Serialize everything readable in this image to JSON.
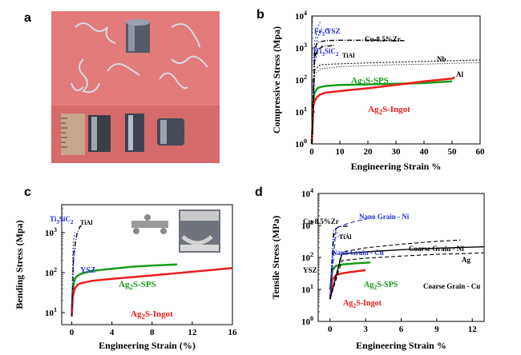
{
  "panels": {
    "a": "a",
    "b": "b",
    "c": "c",
    "d": "d"
  },
  "colors": {
    "sps": "#1a9a1a",
    "ingot": "#ee1c1c",
    "blue": "#1f2ed8",
    "black": "#000000",
    "photo_bg": "#e07878"
  },
  "chart_data": [
    {
      "id": "b",
      "type": "line",
      "xlabel": "Engineering Strain %",
      "ylabel": "Compressive Stress (Mpa)",
      "xlim": [
        0,
        60
      ],
      "ylim": [
        1,
        10000
      ],
      "yscale": "log",
      "x_ticks": [
        "0",
        "10",
        "20",
        "30",
        "40",
        "50",
        "60"
      ],
      "y_ticks": [
        "10^0",
        "10^1",
        "10^2",
        "10^3",
        "10^4"
      ],
      "series": [
        {
          "name": "Ag2S-SPS",
          "color": "#1a9a1a",
          "x": [
            0,
            0.5,
            1,
            2,
            3,
            5,
            10,
            20,
            30,
            40,
            50
          ],
          "y": [
            1,
            20,
            40,
            55,
            60,
            65,
            70,
            73,
            76,
            80,
            90
          ]
        },
        {
          "name": "Ag2S-Ingot",
          "color": "#ee1c1c",
          "x": [
            0,
            0.5,
            1,
            2,
            3,
            5,
            10,
            20,
            30,
            40,
            50,
            51
          ],
          "y": [
            1,
            15,
            22,
            30,
            35,
            40,
            45,
            55,
            70,
            90,
            110,
            120
          ]
        },
        {
          "name": "Fe3C",
          "color": "#1f2ed8",
          "x": [
            0,
            1,
            2,
            3
          ],
          "y": [
            1,
            1500,
            4000,
            6500
          ]
        },
        {
          "name": "YSZ",
          "color": "#1f2ed8",
          "x": [
            0,
            1,
            2,
            3.5
          ],
          "y": [
            1,
            500,
            2000,
            4000
          ]
        },
        {
          "name": "Ti3SiC2",
          "color": "#1f2ed8",
          "x": [
            0,
            1,
            2,
            4
          ],
          "y": [
            1,
            300,
            800,
            1300
          ]
        },
        {
          "name": "Cu-8.5%Zr",
          "color": "#000000",
          "x": [
            0,
            1,
            2,
            5,
            10,
            20,
            33
          ],
          "y": [
            1,
            900,
            1500,
            1700,
            1750,
            1750,
            1700
          ]
        },
        {
          "name": "TiAl",
          "color": "#000000",
          "x": [
            0,
            1,
            2,
            4,
            8
          ],
          "y": [
            1,
            500,
            900,
            1100,
            1200
          ]
        },
        {
          "name": "Nb",
          "color": "#000000",
          "x": [
            0,
            1,
            3,
            10,
            20,
            30,
            40,
            50,
            60
          ],
          "y": [
            1,
            200,
            300,
            320,
            340,
            360,
            380,
            400,
            420
          ]
        },
        {
          "name": "Al",
          "color": "#000000",
          "x": [
            0,
            1,
            3,
            10,
            20,
            30,
            40,
            50,
            60
          ],
          "y": [
            1,
            150,
            220,
            260,
            280,
            300,
            310,
            330,
            350
          ]
        }
      ],
      "annotations": {
        "fe3c": "Fe",
        "fe3c_sub": "3",
        "fe3c_end": "C",
        "ysz": "YSZ",
        "ti": "Ti",
        "ti_sub1": "3",
        "ti_mid": "SiC",
        "ti_sub2": "2",
        "tial": "TiAl",
        "cuzr": "Cu-8.5%Zr",
        "nb": "Nb",
        "al": "Al",
        "sps": "Ag",
        "sps_sub": "2",
        "sps_end": "S-SPS",
        "ingot": "Ag",
        "ingot_sub": "2",
        "ingot_end": "S-Ingot"
      }
    },
    {
      "id": "c",
      "type": "line",
      "xlabel": "Engineering Strain (%)",
      "ylabel": "Bending Stress (Mpa)",
      "xlim": [
        -1,
        16
      ],
      "ylim": [
        5,
        5000
      ],
      "yscale": "log",
      "x_ticks": [
        "0",
        "4",
        "8",
        "12",
        "16"
      ],
      "y_ticks": [
        "10^1",
        "10^2",
        "10^3"
      ],
      "series": [
        {
          "name": "Ag2S-SPS",
          "color": "#1a9a1a",
          "x": [
            0,
            0.1,
            0.3,
            0.6,
            1,
            2,
            4,
            6,
            8,
            10.5
          ],
          "y": [
            10,
            40,
            70,
            85,
            95,
            110,
            125,
            140,
            150,
            160
          ]
        },
        {
          "name": "Ag2S-Ingot",
          "color": "#ee1c1c",
          "x": [
            0,
            0.1,
            0.3,
            0.6,
            1,
            2,
            4,
            8,
            12,
            16
          ],
          "y": [
            8,
            25,
            40,
            50,
            55,
            62,
            70,
            85,
            105,
            130
          ]
        },
        {
          "name": "TiAl",
          "color": "#000000",
          "x": [
            0,
            0.2,
            0.5,
            0.8,
            1.0
          ],
          "y": [
            8,
            300,
            900,
            1400,
            1500
          ]
        },
        {
          "name": "YSZ",
          "color": "#1f2ed8",
          "x": [
            0,
            0.1,
            0.2,
            0.3,
            0.35
          ],
          "y": [
            8,
            100,
            250,
            350,
            400
          ]
        },
        {
          "name": "Ti3SiC2",
          "color": "#1f2ed8",
          "x": [
            0,
            0.1,
            0.2,
            0.3
          ],
          "y": [
            8,
            300,
            700,
            1000
          ]
        }
      ],
      "annotations": {
        "ti": "Ti",
        "ti_sub1": "3",
        "ti_mid": "SiC",
        "ti_sub2": "2",
        "tial": "TiAl",
        "ysz": "YSZ",
        "sps": "Ag",
        "sps_sub": "2",
        "sps_end": "S-SPS",
        "ingot": "Ag",
        "ingot_sub": "2",
        "ingot_end": "S-Ingot"
      }
    },
    {
      "id": "d",
      "type": "line",
      "xlabel": "Engineering Strain %",
      "ylabel": "Tensile Stress (MPa)",
      "xlim": [
        -1,
        13
      ],
      "ylim": [
        1,
        10000
      ],
      "yscale": "log",
      "x_ticks": [
        "0",
        "3",
        "6",
        "9",
        "12"
      ],
      "y_ticks": [
        "10^0",
        "10^1",
        "10^2",
        "10^3",
        "10^4"
      ],
      "series": [
        {
          "name": "Ag2S-SPS",
          "color": "#1a9a1a",
          "x": [
            0,
            0.2,
            0.5,
            1,
            2,
            3.4
          ],
          "y": [
            10,
            40,
            55,
            60,
            65,
            70
          ]
        },
        {
          "name": "Ag2S-Ingot",
          "color": "#ee1c1c",
          "x": [
            0,
            0.2,
            0.5,
            1,
            2,
            3
          ],
          "y": [
            5,
            20,
            28,
            32,
            36,
            40
          ]
        },
        {
          "name": "Cu-8.5%Zr",
          "color": "#000000",
          "x": [
            0,
            0.3,
            0.7,
            1.2,
            1.5
          ],
          "y": [
            5,
            700,
            900,
            950,
            950
          ]
        },
        {
          "name": "TiAl",
          "color": "#000000",
          "x": [
            0,
            0.3,
            0.7
          ],
          "y": [
            5,
            500,
            600
          ]
        },
        {
          "name": "Nano Grain - Ni",
          "color": "#1f2ed8",
          "x": [
            0,
            0.5,
            1,
            2,
            3.1
          ],
          "y": [
            5,
            800,
            1000,
            1300,
            1600
          ]
        },
        {
          "name": "Nano Grain - Cu",
          "color": "#1f2ed8",
          "x": [
            0,
            0.3,
            0.6,
            1,
            1.6
          ],
          "y": [
            5,
            350,
            450,
            500,
            560
          ]
        },
        {
          "name": "YSZ",
          "color": "#1f2ed8",
          "x": [
            0,
            0.1,
            0.2,
            0.3
          ],
          "y": [
            5,
            50,
            110,
            140
          ]
        },
        {
          "name": "Coarse Grain - Ni",
          "color": "#000000",
          "x": [
            0,
            1,
            3,
            6,
            9,
            11
          ],
          "y": [
            5,
            150,
            200,
            260,
            320,
            350
          ]
        },
        {
          "name": "Ag",
          "color": "#000000",
          "x": [
            0,
            1,
            3,
            6,
            9,
            12,
            13
          ],
          "y": [
            5,
            130,
            150,
            175,
            195,
            210,
            215
          ]
        },
        {
          "name": "Coarse Grain - Cu",
          "color": "#000000",
          "x": [
            0,
            1,
            3,
            6,
            9,
            12,
            13
          ],
          "y": [
            5,
            80,
            95,
            110,
            125,
            135,
            140
          ]
        }
      ],
      "annotations": {
        "cuzr": "Cu-8.5%Zr",
        "nano_ni": "Nano Grain - Ni",
        "tial": "TiAl",
        "nano_cu": "Nano Grain - Cu",
        "coarse_ni": "Coarse Grain - Ni",
        "ag": "Ag",
        "ysz": "YSZ",
        "sps": "Ag",
        "sps_sub": "2",
        "sps_end": "S-SPS",
        "coarse_cu": "Coarse Grain - Cu",
        "ingot": "Ag",
        "ingot_sub": "2",
        "ingot_end": "S-Ingot"
      }
    }
  ]
}
